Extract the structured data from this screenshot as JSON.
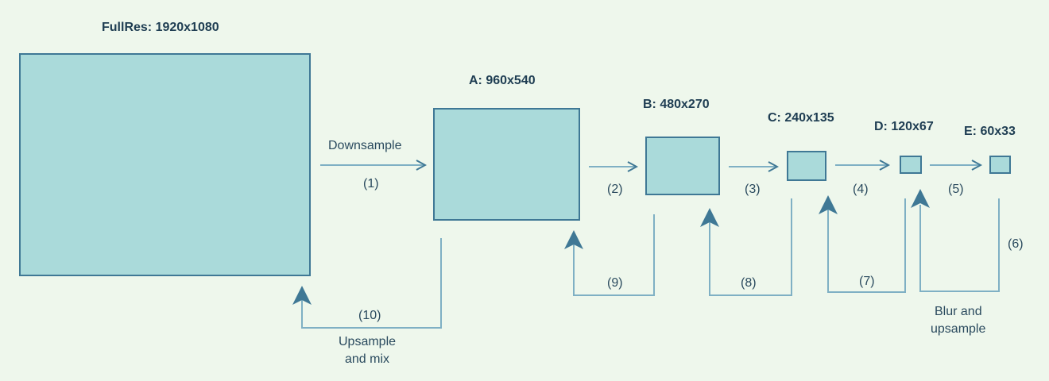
{
  "boxes": {
    "full": {
      "title": "FullRes: 1920x1080"
    },
    "a": {
      "title": "A: 960x540"
    },
    "b": {
      "title": "B: 480x270"
    },
    "c": {
      "title": "C: 240x135"
    },
    "d": {
      "title": "D: 120x67"
    },
    "e": {
      "title": "E: 60x33"
    }
  },
  "steps": {
    "s1": "(1)",
    "s2": "(2)",
    "s3": "(3)",
    "s4": "(4)",
    "s5": "(5)",
    "s6": "(6)",
    "s7": "(7)",
    "s8": "(8)",
    "s9": "(9)",
    "s10": "(10)"
  },
  "annotations": {
    "downsample": "Downsample",
    "upsample_mix_line1": "Upsample",
    "upsample_mix_line2": "and mix",
    "blur_line1": "Blur and",
    "blur_line2": "upsample"
  },
  "colors": {
    "background": "#eef7ec",
    "box_fill": "#aadada",
    "box_border": "#3f7895",
    "arrow": "#3f7895"
  }
}
